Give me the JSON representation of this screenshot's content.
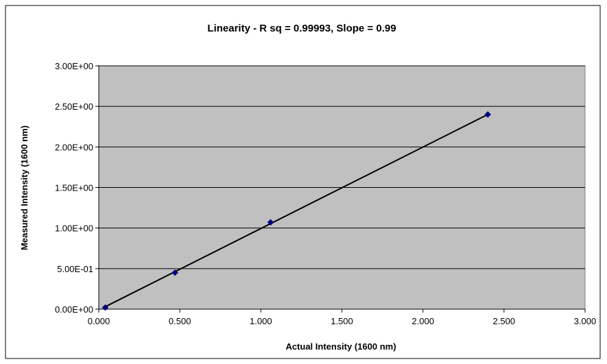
{
  "chart_data": {
    "type": "scatter",
    "title": "Linearity - R sq = 0.99993, Slope = 0.99",
    "xlabel": "Actual  Intensity (1600 nm)",
    "ylabel": "Measured Intensity (1600 nm)",
    "xlim": [
      0,
      3
    ],
    "ylim": [
      0,
      3
    ],
    "x_ticks": [
      0,
      0.5,
      1,
      1.5,
      2,
      2.5,
      3
    ],
    "x_tick_labels": [
      "0.000",
      "0.500",
      "1.000",
      "1.500",
      "2.000",
      "2.500",
      "3.000"
    ],
    "y_ticks": [
      0,
      0.5,
      1,
      1.5,
      2,
      2.5,
      3
    ],
    "y_tick_labels": [
      "0.00E+00",
      "5.00E-01",
      "1.00E+00",
      "1.50E+00",
      "2.00E+00",
      "2.50E+00",
      "3.00E+00"
    ],
    "grid": "horizontal",
    "legend": "none",
    "series": [
      {
        "x": [
          0.04,
          0.47,
          1.06,
          2.4
        ],
        "y": [
          0.02,
          0.45,
          1.07,
          2.4
        ],
        "marker": "diamond",
        "color": "#000080"
      }
    ],
    "trendline": {
      "x": [
        0.04,
        2.4
      ],
      "y": [
        0.03,
        2.4
      ],
      "color": "#000000"
    },
    "plot_background": "#c0c0c0"
  }
}
